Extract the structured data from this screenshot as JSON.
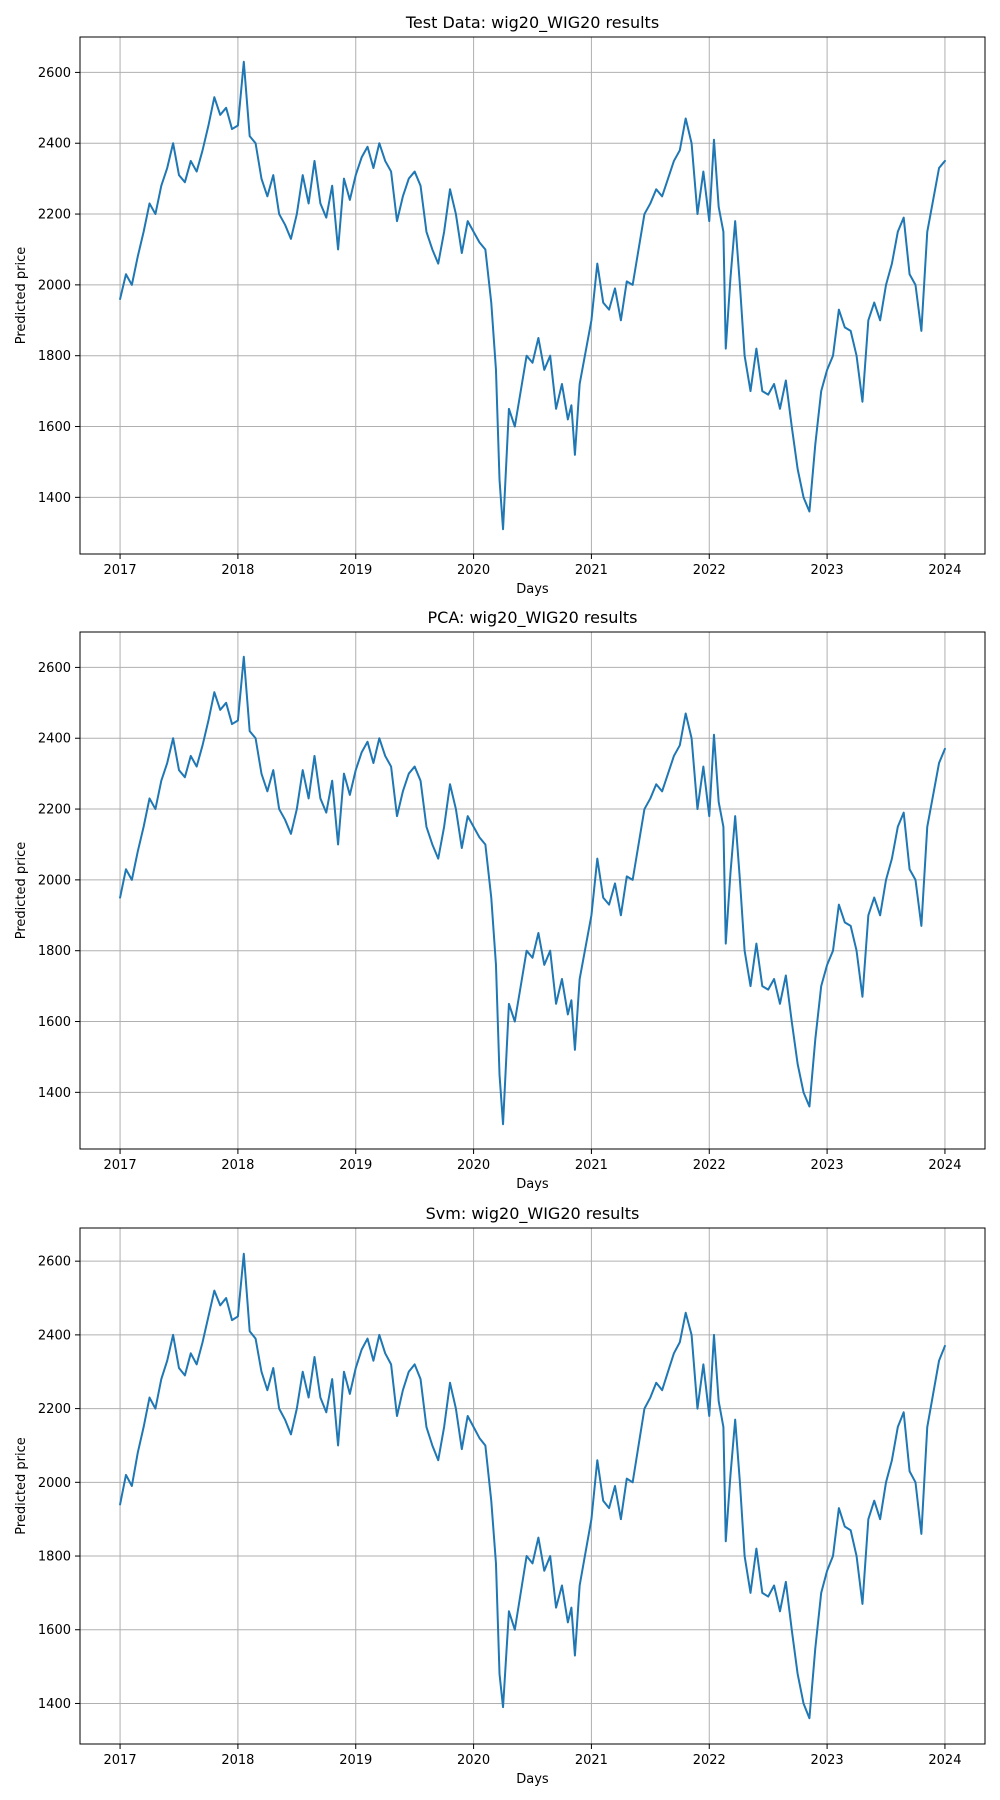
{
  "colors": {
    "series": "#1f77b4",
    "grid": "#b0b0b0",
    "frame": "#000000"
  },
  "chart_data": [
    {
      "type": "line",
      "title": "Test Data: wig20_WIG20 results",
      "xlabel": "Days",
      "ylabel": "Predicted price",
      "xlim": [
        2016.66,
        2024.34
      ],
      "ylim": [
        1240,
        2700
      ],
      "xticks": [
        "2017",
        "2018",
        "2019",
        "2020",
        "2021",
        "2022",
        "2023",
        "2024"
      ],
      "yticks": [
        "1400",
        "1600",
        "1800",
        "2000",
        "2200",
        "2400",
        "2600"
      ],
      "grid": true,
      "x": [
        2017.0,
        2017.05,
        2017.1,
        2017.15,
        2017.2,
        2017.25,
        2017.3,
        2017.35,
        2017.4,
        2017.45,
        2017.5,
        2017.55,
        2017.6,
        2017.65,
        2017.7,
        2017.75,
        2017.8,
        2017.85,
        2017.9,
        2017.95,
        2018.0,
        2018.05,
        2018.1,
        2018.15,
        2018.2,
        2018.25,
        2018.3,
        2018.35,
        2018.4,
        2018.45,
        2018.5,
        2018.55,
        2018.6,
        2018.65,
        2018.7,
        2018.75,
        2018.8,
        2018.85,
        2018.9,
        2018.95,
        2019.0,
        2019.05,
        2019.1,
        2019.15,
        2019.2,
        2019.25,
        2019.3,
        2019.35,
        2019.4,
        2019.45,
        2019.5,
        2019.55,
        2019.6,
        2019.65,
        2019.7,
        2019.75,
        2019.8,
        2019.85,
        2019.9,
        2019.95,
        2020.0,
        2020.05,
        2020.1,
        2020.15,
        2020.19,
        2020.22,
        2020.25,
        2020.3,
        2020.35,
        2020.4,
        2020.45,
        2020.5,
        2020.55,
        2020.6,
        2020.65,
        2020.7,
        2020.75,
        2020.8,
        2020.83,
        2020.86,
        2020.9,
        2020.95,
        2021.0,
        2021.05,
        2021.1,
        2021.15,
        2021.2,
        2021.25,
        2021.3,
        2021.35,
        2021.4,
        2021.45,
        2021.5,
        2021.55,
        2021.6,
        2021.65,
        2021.7,
        2021.75,
        2021.8,
        2021.85,
        2021.9,
        2021.95,
        2022.0,
        2022.04,
        2022.08,
        2022.12,
        2022.14,
        2022.18,
        2022.22,
        2022.26,
        2022.3,
        2022.35,
        2022.4,
        2022.45,
        2022.5,
        2022.55,
        2022.6,
        2022.65,
        2022.7,
        2022.75,
        2022.8,
        2022.85,
        2022.9,
        2022.95,
        2023.0,
        2023.05,
        2023.1,
        2023.15,
        2023.2,
        2023.25,
        2023.3,
        2023.35,
        2023.4,
        2023.45,
        2023.5,
        2023.55,
        2023.6,
        2023.65,
        2023.7,
        2023.75,
        2023.8,
        2023.85,
        2023.9,
        2023.95,
        2024.0
      ],
      "series": [
        {
          "values": [
            1960,
            2030,
            2000,
            2080,
            2150,
            2230,
            2200,
            2280,
            2330,
            2400,
            2310,
            2290,
            2350,
            2320,
            2380,
            2450,
            2530,
            2480,
            2500,
            2440,
            2450,
            2630,
            2420,
            2400,
            2300,
            2250,
            2310,
            2200,
            2170,
            2130,
            2200,
            2310,
            2230,
            2350,
            2230,
            2190,
            2280,
            2100,
            2300,
            2240,
            2310,
            2360,
            2390,
            2330,
            2400,
            2350,
            2320,
            2180,
            2250,
            2300,
            2320,
            2280,
            2150,
            2100,
            2060,
            2150,
            2270,
            2200,
            2090,
            2180,
            2150,
            2120,
            2100,
            1950,
            1760,
            1450,
            1310,
            1650,
            1600,
            1700,
            1800,
            1780,
            1850,
            1760,
            1800,
            1650,
            1720,
            1620,
            1660,
            1520,
            1720,
            1810,
            1900,
            2060,
            1950,
            1930,
            1990,
            1900,
            2010,
            2000,
            2100,
            2200,
            2230,
            2270,
            2250,
            2300,
            2350,
            2380,
            2470,
            2400,
            2200,
            2320,
            2180,
            2410,
            2220,
            2150,
            1820,
            2020,
            2180,
            2000,
            1800,
            1700,
            1820,
            1700,
            1690,
            1720,
            1650,
            1730,
            1600,
            1480,
            1400,
            1360,
            1550,
            1700,
            1760,
            1800,
            1930,
            1880,
            1870,
            1800,
            1670,
            1900,
            1950,
            1900,
            2000,
            2060,
            2150,
            2190,
            2030,
            2000,
            1870,
            2150,
            2240,
            2330,
            2350
          ]
        }
      ]
    },
    {
      "type": "line",
      "title": "PCA: wig20_WIG20 results",
      "xlabel": "Days",
      "ylabel": "Predicted price",
      "xlim": [
        2016.66,
        2024.34
      ],
      "ylim": [
        1240,
        2700
      ],
      "xticks": [
        "2017",
        "2018",
        "2019",
        "2020",
        "2021",
        "2022",
        "2023",
        "2024"
      ],
      "yticks": [
        "1400",
        "1600",
        "1800",
        "2000",
        "2200",
        "2400",
        "2600"
      ],
      "grid": true,
      "x": [
        2017.0,
        2017.05,
        2017.1,
        2017.15,
        2017.2,
        2017.25,
        2017.3,
        2017.35,
        2017.4,
        2017.45,
        2017.5,
        2017.55,
        2017.6,
        2017.65,
        2017.7,
        2017.75,
        2017.8,
        2017.85,
        2017.9,
        2017.95,
        2018.0,
        2018.05,
        2018.1,
        2018.15,
        2018.2,
        2018.25,
        2018.3,
        2018.35,
        2018.4,
        2018.45,
        2018.5,
        2018.55,
        2018.6,
        2018.65,
        2018.7,
        2018.75,
        2018.8,
        2018.85,
        2018.9,
        2018.95,
        2019.0,
        2019.05,
        2019.1,
        2019.15,
        2019.2,
        2019.25,
        2019.3,
        2019.35,
        2019.4,
        2019.45,
        2019.5,
        2019.55,
        2019.6,
        2019.65,
        2019.7,
        2019.75,
        2019.8,
        2019.85,
        2019.9,
        2019.95,
        2020.0,
        2020.05,
        2020.1,
        2020.15,
        2020.19,
        2020.22,
        2020.25,
        2020.3,
        2020.35,
        2020.4,
        2020.45,
        2020.5,
        2020.55,
        2020.6,
        2020.65,
        2020.7,
        2020.75,
        2020.8,
        2020.83,
        2020.86,
        2020.9,
        2020.95,
        2021.0,
        2021.05,
        2021.1,
        2021.15,
        2021.2,
        2021.25,
        2021.3,
        2021.35,
        2021.4,
        2021.45,
        2021.5,
        2021.55,
        2021.6,
        2021.65,
        2021.7,
        2021.75,
        2021.8,
        2021.85,
        2021.9,
        2021.95,
        2022.0,
        2022.04,
        2022.08,
        2022.12,
        2022.14,
        2022.18,
        2022.22,
        2022.26,
        2022.3,
        2022.35,
        2022.4,
        2022.45,
        2022.5,
        2022.55,
        2022.6,
        2022.65,
        2022.7,
        2022.75,
        2022.8,
        2022.85,
        2022.9,
        2022.95,
        2023.0,
        2023.05,
        2023.1,
        2023.15,
        2023.2,
        2023.25,
        2023.3,
        2023.35,
        2023.4,
        2023.45,
        2023.5,
        2023.55,
        2023.6,
        2023.65,
        2023.7,
        2023.75,
        2023.8,
        2023.85,
        2023.9,
        2023.95,
        2024.0
      ],
      "series": [
        {
          "values": [
            1950,
            2030,
            2000,
            2080,
            2150,
            2230,
            2200,
            2280,
            2330,
            2400,
            2310,
            2290,
            2350,
            2320,
            2380,
            2450,
            2530,
            2480,
            2500,
            2440,
            2450,
            2630,
            2420,
            2400,
            2300,
            2250,
            2310,
            2200,
            2170,
            2130,
            2200,
            2310,
            2230,
            2350,
            2230,
            2190,
            2280,
            2100,
            2300,
            2240,
            2310,
            2360,
            2390,
            2330,
            2400,
            2350,
            2320,
            2180,
            2250,
            2300,
            2320,
            2280,
            2150,
            2100,
            2060,
            2150,
            2270,
            2200,
            2090,
            2180,
            2150,
            2120,
            2100,
            1950,
            1760,
            1450,
            1310,
            1650,
            1600,
            1700,
            1800,
            1780,
            1850,
            1760,
            1800,
            1650,
            1720,
            1620,
            1660,
            1520,
            1720,
            1810,
            1900,
            2060,
            1950,
            1930,
            1990,
            1900,
            2010,
            2000,
            2100,
            2200,
            2230,
            2270,
            2250,
            2300,
            2350,
            2380,
            2470,
            2400,
            2200,
            2320,
            2180,
            2410,
            2220,
            2150,
            1820,
            2020,
            2180,
            2000,
            1800,
            1700,
            1820,
            1700,
            1690,
            1720,
            1650,
            1730,
            1600,
            1480,
            1400,
            1360,
            1550,
            1700,
            1760,
            1800,
            1930,
            1880,
            1870,
            1800,
            1670,
            1900,
            1950,
            1900,
            2000,
            2060,
            2150,
            2190,
            2030,
            2000,
            1870,
            2150,
            2240,
            2330,
            2370
          ]
        }
      ]
    },
    {
      "type": "line",
      "title": "Svm: wig20_WIG20 results",
      "xlabel": "Days",
      "ylabel": "Predicted price",
      "xlim": [
        2016.66,
        2024.34
      ],
      "ylim": [
        1290,
        2690
      ],
      "xticks": [
        "2017",
        "2018",
        "2019",
        "2020",
        "2021",
        "2022",
        "2023",
        "2024"
      ],
      "yticks": [
        "1400",
        "1600",
        "1800",
        "2000",
        "2200",
        "2400",
        "2600"
      ],
      "grid": true,
      "x": [
        2017.0,
        2017.05,
        2017.1,
        2017.15,
        2017.2,
        2017.25,
        2017.3,
        2017.35,
        2017.4,
        2017.45,
        2017.5,
        2017.55,
        2017.6,
        2017.65,
        2017.7,
        2017.75,
        2017.8,
        2017.85,
        2017.9,
        2017.95,
        2018.0,
        2018.05,
        2018.1,
        2018.15,
        2018.2,
        2018.25,
        2018.3,
        2018.35,
        2018.4,
        2018.45,
        2018.5,
        2018.55,
        2018.6,
        2018.65,
        2018.7,
        2018.75,
        2018.8,
        2018.85,
        2018.9,
        2018.95,
        2019.0,
        2019.05,
        2019.1,
        2019.15,
        2019.2,
        2019.25,
        2019.3,
        2019.35,
        2019.4,
        2019.45,
        2019.5,
        2019.55,
        2019.6,
        2019.65,
        2019.7,
        2019.75,
        2019.8,
        2019.85,
        2019.9,
        2019.95,
        2020.0,
        2020.05,
        2020.1,
        2020.15,
        2020.19,
        2020.22,
        2020.25,
        2020.3,
        2020.35,
        2020.4,
        2020.45,
        2020.5,
        2020.55,
        2020.6,
        2020.65,
        2020.7,
        2020.75,
        2020.8,
        2020.83,
        2020.86,
        2020.9,
        2020.95,
        2021.0,
        2021.05,
        2021.1,
        2021.15,
        2021.2,
        2021.25,
        2021.3,
        2021.35,
        2021.4,
        2021.45,
        2021.5,
        2021.55,
        2021.6,
        2021.65,
        2021.7,
        2021.75,
        2021.8,
        2021.85,
        2021.9,
        2021.95,
        2022.0,
        2022.04,
        2022.08,
        2022.12,
        2022.14,
        2022.18,
        2022.22,
        2022.26,
        2022.3,
        2022.35,
        2022.4,
        2022.45,
        2022.5,
        2022.55,
        2022.6,
        2022.65,
        2022.7,
        2022.75,
        2022.8,
        2022.85,
        2022.9,
        2022.95,
        2023.0,
        2023.05,
        2023.1,
        2023.15,
        2023.2,
        2023.25,
        2023.3,
        2023.35,
        2023.4,
        2023.45,
        2023.5,
        2023.55,
        2023.6,
        2023.65,
        2023.7,
        2023.75,
        2023.8,
        2023.85,
        2023.9,
        2023.95,
        2024.0
      ],
      "series": [
        {
          "values": [
            1940,
            2020,
            1990,
            2080,
            2150,
            2230,
            2200,
            2280,
            2330,
            2400,
            2310,
            2290,
            2350,
            2320,
            2380,
            2450,
            2520,
            2480,
            2500,
            2440,
            2450,
            2620,
            2410,
            2390,
            2300,
            2250,
            2310,
            2200,
            2170,
            2130,
            2200,
            2300,
            2230,
            2340,
            2230,
            2190,
            2280,
            2100,
            2300,
            2240,
            2310,
            2360,
            2390,
            2330,
            2400,
            2350,
            2320,
            2180,
            2250,
            2300,
            2320,
            2280,
            2150,
            2100,
            2060,
            2150,
            2270,
            2200,
            2090,
            2180,
            2150,
            2120,
            2100,
            1950,
            1780,
            1480,
            1390,
            1650,
            1600,
            1700,
            1800,
            1780,
            1850,
            1760,
            1800,
            1660,
            1720,
            1620,
            1660,
            1530,
            1720,
            1810,
            1900,
            2060,
            1950,
            1930,
            1990,
            1900,
            2010,
            2000,
            2100,
            2200,
            2230,
            2270,
            2250,
            2300,
            2350,
            2380,
            2460,
            2400,
            2200,
            2320,
            2180,
            2400,
            2220,
            2150,
            1840,
            2020,
            2170,
            2000,
            1800,
            1700,
            1820,
            1700,
            1690,
            1720,
            1650,
            1730,
            1600,
            1480,
            1400,
            1360,
            1550,
            1700,
            1760,
            1800,
            1930,
            1880,
            1870,
            1800,
            1670,
            1900,
            1950,
            1900,
            2000,
            2060,
            2150,
            2190,
            2030,
            2000,
            1860,
            2150,
            2240,
            2330,
            2370
          ]
        }
      ]
    }
  ]
}
